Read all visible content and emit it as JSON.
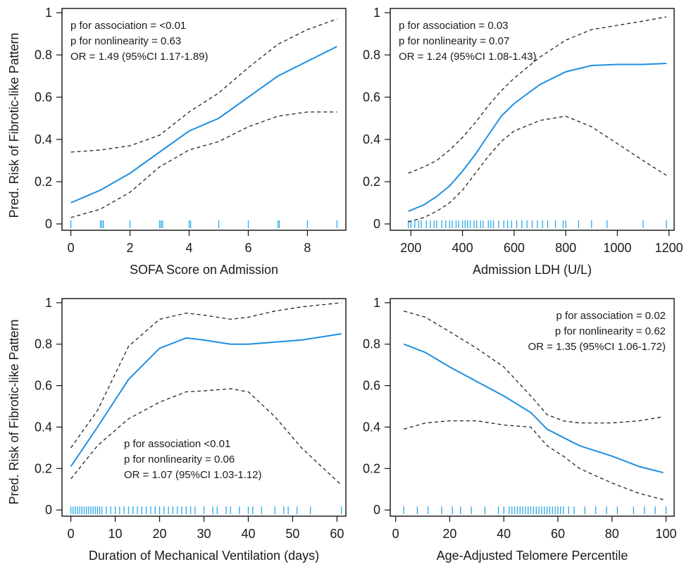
{
  "ylabel": "Pred. Risk of Fibrotic-like Pattern",
  "colors": {
    "fit": "#1f8fe0",
    "ci": "#222222",
    "rug": "#29a8e8",
    "axis": "#111111"
  },
  "chart_data": [
    {
      "type": "line",
      "xlabel": "SOFA Score on Admission",
      "xlim": [
        -0.3,
        9.3
      ],
      "ylim": [
        -0.03,
        1.02
      ],
      "xticks": [
        0,
        2,
        4,
        6,
        8
      ],
      "yticks": [
        0,
        0.2,
        0.4,
        0.6,
        0.8,
        1
      ],
      "annotation_position": "top-left",
      "annotations": [
        "p for association = <0.01",
        "p for nonlinearity = 0.63",
        "OR = 1.49 (95%CI 1.17-1.89)"
      ],
      "x": [
        0,
        1,
        2,
        3,
        4,
        5,
        6,
        7,
        8,
        9
      ],
      "fit": [
        0.1,
        0.16,
        0.24,
        0.34,
        0.44,
        0.5,
        0.6,
        0.7,
        0.77,
        0.84
      ],
      "lower": [
        0.03,
        0.07,
        0.15,
        0.27,
        0.35,
        0.39,
        0.46,
        0.51,
        0.53,
        0.53
      ],
      "upper": [
        0.34,
        0.35,
        0.37,
        0.42,
        0.53,
        0.62,
        0.74,
        0.85,
        0.92,
        0.97
      ],
      "rug": [
        0,
        1,
        1.05,
        1.1,
        2,
        3,
        3.05,
        3.1,
        4,
        4.05,
        5,
        6,
        7,
        7.05,
        8,
        9
      ]
    },
    {
      "type": "line",
      "xlabel": "Admission LDH (U/L)",
      "xlim": [
        120,
        1220
      ],
      "ylim": [
        -0.03,
        1.02
      ],
      "xticks": [
        200,
        400,
        600,
        800,
        1000,
        1200
      ],
      "yticks": [
        0,
        0.2,
        0.4,
        0.6,
        0.8,
        1
      ],
      "annotation_position": "top-left",
      "annotations": [
        "p for association = 0.03",
        "p for nonlinearity = 0.07",
        "OR = 1.24 (95%CI 1.08-1.43)"
      ],
      "x": [
        190,
        250,
        300,
        350,
        400,
        450,
        500,
        550,
        600,
        700,
        800,
        900,
        1000,
        1100,
        1190
      ],
      "fit": [
        0.06,
        0.09,
        0.13,
        0.18,
        0.25,
        0.33,
        0.42,
        0.51,
        0.57,
        0.66,
        0.72,
        0.75,
        0.755,
        0.755,
        0.76
      ],
      "lower": [
        0.01,
        0.03,
        0.06,
        0.1,
        0.16,
        0.24,
        0.32,
        0.39,
        0.44,
        0.49,
        0.51,
        0.46,
        0.38,
        0.3,
        0.23
      ],
      "upper": [
        0.24,
        0.27,
        0.3,
        0.35,
        0.41,
        0.48,
        0.56,
        0.63,
        0.69,
        0.79,
        0.87,
        0.92,
        0.94,
        0.96,
        0.98
      ],
      "rug": [
        190,
        200,
        215,
        230,
        240,
        260,
        275,
        290,
        300,
        320,
        335,
        350,
        360,
        375,
        385,
        400,
        410,
        420,
        430,
        445,
        455,
        470,
        480,
        500,
        510,
        520,
        540,
        560,
        575,
        590,
        610,
        630,
        650,
        670,
        690,
        710,
        730,
        760,
        790,
        800,
        850,
        900,
        960,
        1100,
        1190
      ]
    },
    {
      "type": "line",
      "xlabel": "Duration of Mechanical Ventilation (days)",
      "xlim": [
        -2,
        62
      ],
      "ylim": [
        -0.03,
        1.02
      ],
      "xticks": [
        0,
        10,
        20,
        30,
        40,
        50,
        60
      ],
      "yticks": [
        0,
        0.2,
        0.4,
        0.6,
        0.8,
        1
      ],
      "annotation_position": "bottom-center",
      "annotations": [
        "p for association <0.01",
        "p for nonlinearity = 0.06",
        "OR = 1.07 (95%CI 1.03-1.12)"
      ],
      "x": [
        0,
        6,
        13,
        20,
        26,
        30,
        36,
        40,
        46,
        52,
        61
      ],
      "fit": [
        0.21,
        0.4,
        0.63,
        0.78,
        0.83,
        0.82,
        0.8,
        0.8,
        0.81,
        0.82,
        0.85
      ],
      "lower": [
        0.15,
        0.31,
        0.44,
        0.52,
        0.57,
        0.575,
        0.585,
        0.57,
        0.45,
        0.3,
        0.12
      ],
      "upper": [
        0.3,
        0.48,
        0.79,
        0.92,
        0.95,
        0.94,
        0.92,
        0.93,
        0.96,
        0.98,
        1.0
      ],
      "rug": [
        0,
        0.5,
        1,
        1.5,
        2,
        2.5,
        3,
        3.5,
        4,
        4.5,
        5,
        5.5,
        6,
        6.5,
        7,
        8,
        9,
        10,
        11,
        12,
        13,
        14,
        15,
        16,
        17,
        18,
        19,
        20,
        21,
        22,
        23,
        24,
        25,
        26,
        27,
        28,
        30,
        32,
        33,
        35,
        36,
        38,
        40,
        41,
        43,
        46,
        48,
        49,
        51,
        54,
        61
      ]
    },
    {
      "type": "line",
      "xlabel": "Age-Adjusted Telomere Percentile",
      "xlim": [
        -2,
        103
      ],
      "ylim": [
        -0.03,
        1.02
      ],
      "xticks": [
        0,
        20,
        40,
        60,
        80,
        100
      ],
      "yticks": [
        0,
        0.2,
        0.4,
        0.6,
        0.8,
        1
      ],
      "annotation_position": "top-right",
      "annotations": [
        "p for association = 0.02",
        "p for nonlinearity = 0.62",
        "OR = 1.35 (95%CI 1.06-1.72)"
      ],
      "x": [
        3,
        11,
        20,
        30,
        40,
        50,
        56,
        62,
        68,
        80,
        90,
        99
      ],
      "fit": [
        0.8,
        0.76,
        0.69,
        0.62,
        0.55,
        0.47,
        0.39,
        0.35,
        0.31,
        0.26,
        0.21,
        0.18
      ],
      "lower": [
        0.39,
        0.42,
        0.43,
        0.43,
        0.41,
        0.4,
        0.31,
        0.26,
        0.2,
        0.13,
        0.08,
        0.05
      ],
      "upper": [
        0.96,
        0.93,
        0.86,
        0.78,
        0.69,
        0.55,
        0.46,
        0.43,
        0.42,
        0.42,
        0.43,
        0.45
      ],
      "rug": [
        3,
        8,
        12,
        17,
        21,
        24,
        28,
        33,
        38,
        40,
        42,
        43,
        44,
        45,
        46,
        47,
        48,
        49,
        50,
        51,
        52,
        53,
        54,
        55,
        56,
        57,
        58,
        59,
        60,
        61,
        62,
        64,
        66,
        70,
        74,
        78,
        82,
        88,
        92,
        96,
        100
      ]
    }
  ]
}
